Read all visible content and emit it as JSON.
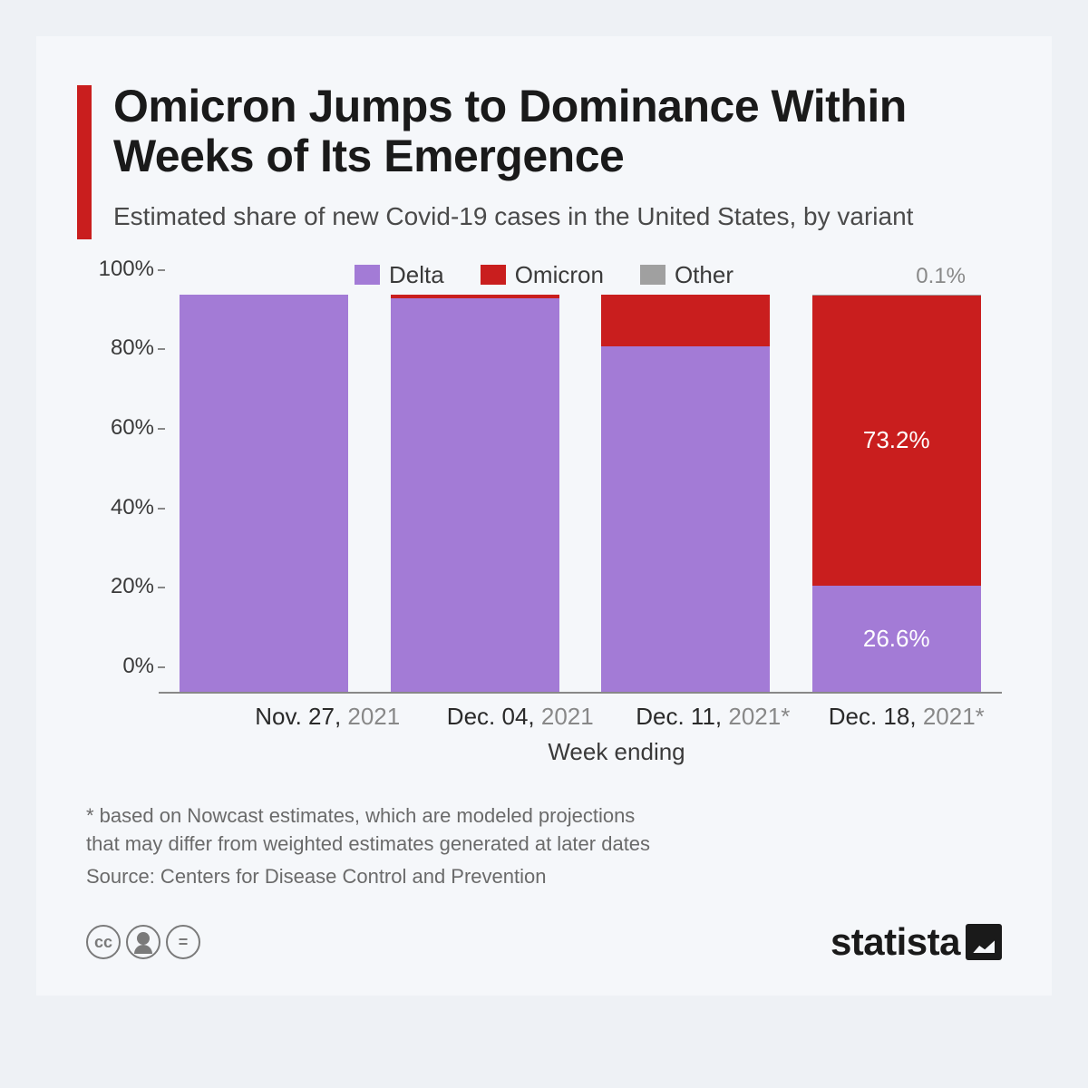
{
  "header": {
    "title": "Omicron Jumps to Dominance Within Weeks of Its Emergence",
    "subtitle": "Estimated share of new Covid-19 cases in the United States, by variant",
    "accent_color": "#c91e1e"
  },
  "chart": {
    "type": "stacked-bar",
    "legend": [
      {
        "label": "Delta",
        "color": "#a37bd6"
      },
      {
        "label": "Omicron",
        "color": "#c91e1e"
      },
      {
        "label": "Other",
        "color": "#a0a0a0"
      }
    ],
    "y_axis": {
      "min": 0,
      "max": 100,
      "step": 20,
      "suffix": "%"
    },
    "x_title": "Week ending",
    "extra_top_label": "0.1%",
    "bars": [
      {
        "date_main": "Nov. 27,",
        "date_year": "2021",
        "star": false,
        "segments": [
          {
            "series": "Delta",
            "value": 100,
            "label": ""
          }
        ]
      },
      {
        "date_main": "Dec. 04,",
        "date_year": "2021",
        "star": false,
        "segments": [
          {
            "series": "Delta",
            "value": 99,
            "label": ""
          },
          {
            "series": "Omicron",
            "value": 1,
            "label": ""
          }
        ]
      },
      {
        "date_main": "Dec. 11,",
        "date_year": "2021",
        "star": true,
        "segments": [
          {
            "series": "Delta",
            "value": 87,
            "label": ""
          },
          {
            "series": "Omicron",
            "value": 13,
            "label": ""
          }
        ]
      },
      {
        "date_main": "Dec. 18,",
        "date_year": "2021",
        "star": true,
        "segments": [
          {
            "series": "Delta",
            "value": 26.6,
            "label": "26.6%"
          },
          {
            "series": "Omicron",
            "value": 73.2,
            "label": "73.2%"
          },
          {
            "series": "Other",
            "value": 0.2,
            "label": ""
          }
        ]
      }
    ],
    "colors": {
      "Delta": "#a37bd6",
      "Omicron": "#c91e1e",
      "Other": "#a0a0a0"
    },
    "background": "#f5f7fa",
    "axis_color": "#888888",
    "text_color": "#3a3a3a"
  },
  "footnote": "* based on Nowcast estimates, which are modeled projections\n   that may differ from weighted estimates generated at later dates",
  "source": "Source: Centers for Disease Control and Prevention",
  "brand": "statista"
}
